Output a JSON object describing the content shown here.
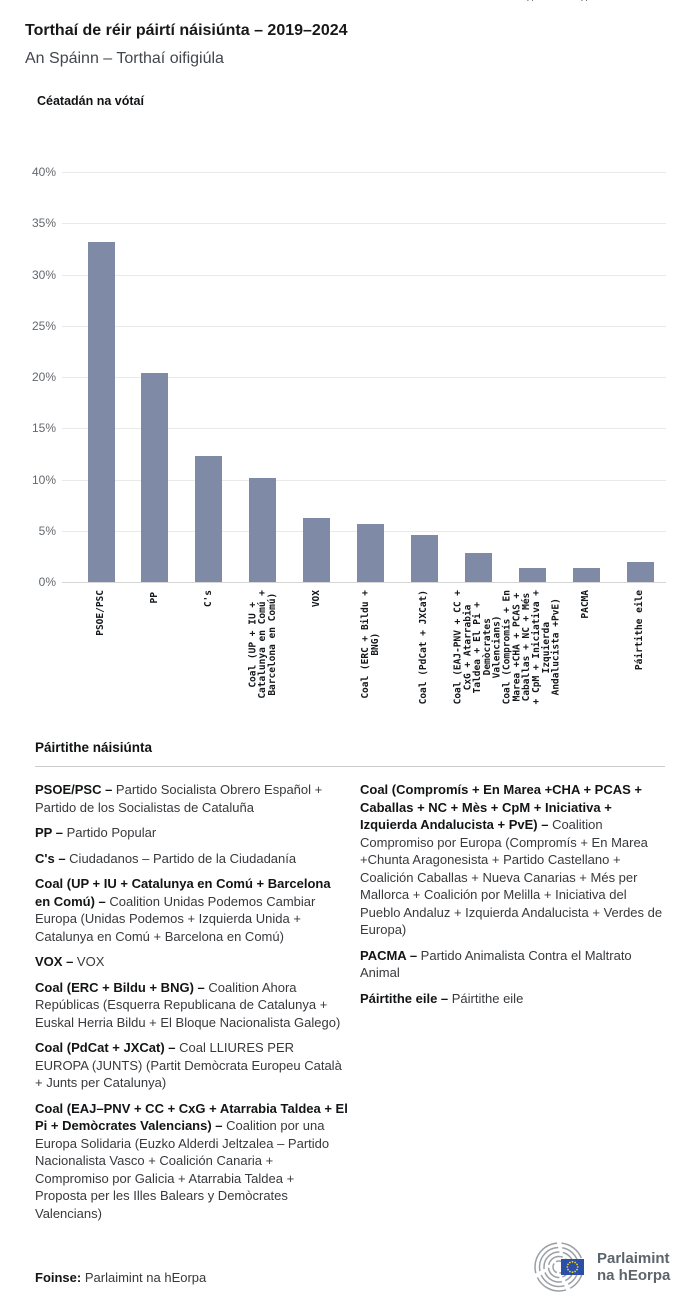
{
  "header": {
    "title": "Torthaí de réir páirtí náisiúnta – 2019–2024",
    "subtitle": "An Spáinn – Torthaí oifigiúla"
  },
  "chart_data": {
    "type": "bar",
    "title": "Céatadán na vótaí",
    "xlabel": "",
    "ylabel": "Céatadán na vótaí",
    "ylim": [
      0,
      40
    ],
    "ytick_step": 5,
    "grid": true,
    "bar_color": "#7f8aa6",
    "y_ticks": [
      "0%",
      "5%",
      "10%",
      "15%",
      "20%",
      "25%",
      "30%",
      "35%",
      "40%"
    ],
    "categories": [
      "PSOE/PSC",
      "PP",
      "C's",
      "Coal (UP + IU + Catalunya en Comú + Barcelona en Comú)",
      "VOX",
      "Coal (ERC + Bildu + BNG)",
      "Coal (PdCat + JXCat)",
      "Coal (EAJ-PNV + CC + CxG + Atarrabia Taldea + El Pi + Demòcrates Valencians)",
      "Coal (Compromís + En Marea +CHA + PCAS + Caballas + NC + Més + CpM + Iniciativa + Izquierda Andalucista +PvE)",
      "PACMA",
      "Páirtithe eile"
    ],
    "categories_display": [
      "PSOE/PSC",
      "PP",
      "C's",
      "Coal (UP + IU +\nCatalunya en Comú +\nBarcelona en Comú)",
      "VOX",
      "Coal (ERC + Bildu +\nBNG)",
      "Coal (PdCat + JXCat)",
      "Coal (EAJ-PNV + CC +\nCxG + Atarrabia\nTaldea + El Pi +\nDemòcrates\nValencians)",
      "Coal (Compromís + En\nMarea +CHA + PCAS +\nCaballas + NC + Més\n+ CpM + Iniciativa +\nIzquierda\nAndalucista +PvE)",
      "PACMA",
      "Páirtithe eile"
    ],
    "values": [
      33.18,
      20.35,
      12.3,
      10.17,
      6.28,
      5.64,
      4.59,
      2.85,
      1.33,
      1.33,
      1.98
    ],
    "value_labels": [
      "33.18",
      "20.35",
      "12.30",
      "10.17",
      "6.28",
      "5.64",
      "4.59",
      "2.85",
      "1.33",
      "1.33",
      "1.98"
    ]
  },
  "legend": {
    "title": "Páirtithe náisiúnta",
    "columns": [
      [
        {
          "name": "PSOE/PSC",
          "desc": "Partido Socialista Obrero Español + Partido de los Socialistas de Cataluña"
        },
        {
          "name": "PP",
          "desc": "Partido Popular"
        },
        {
          "name": "C's",
          "desc": "Ciudadanos – Partido de la Ciudadanía"
        },
        {
          "name": "Coal (UP + IU + Catalunya en Comú + Barcelona en Comú)",
          "desc": "Coalition Unidas Podemos Cambiar Europa (Unidas Podemos + Izquierda Unida + Catalunya en Comú + Barcelona en Comú)"
        },
        {
          "name": "VOX",
          "desc": "VOX"
        },
        {
          "name": "Coal (ERC + Bildu + BNG)",
          "desc": "Coalition Ahora Repúblicas (Esquerra Republicana de Catalunya + Euskal Herria Bildu + El Bloque Nacionalista Galego)"
        },
        {
          "name": "Coal (PdCat + JXCat)",
          "desc": "Coal LLIURES PER EUROPA (JUNTS) (Partit Demòcrata Europeu Català + Junts per Catalunya)"
        },
        {
          "name": "Coal (EAJ–PNV + CC + CxG + Atarrabia Taldea + El Pi + Demòcrates Valencians)",
          "desc": "Coalition por una Europa Solidaria (Euzko Alderdi Jeltzalea – Partido Nacionalista Vasco + Coalición Canaria + Compromiso por Galicia + Atarrabia Taldea + Proposta per les Illes Balears y Demòcrates Valencians)"
        }
      ],
      [
        {
          "name": "Coal (Compromís + En Marea +CHA + PCAS + Caballas + NC + Mès + CpM + Iniciativa + Izquierda Andalucista + PvE)",
          "desc": "Coalition Compromiso por Europa (Compromís + En Marea +Chunta Aragonesista + Partido Castellano + Coalición Caballas + Nueva Canarias + Més per Mallorca + Coalición por Melilla + Iniciativa del Pueblo Andaluz + Izquierda Andalucista + Verdes de Europa)"
        },
        {
          "name": "PACMA",
          "desc": "Partido Animalista Contra el Maltrato Animal"
        },
        {
          "name": "Páirtithe eile",
          "desc": "Páirtithe eile"
        }
      ]
    ]
  },
  "footer": {
    "source_label": "Foinse:",
    "source_value": "Parlaimint na hEorpa",
    "logo_line1": "Parlaimint",
    "logo_line2": "na hEorpa"
  },
  "colors": {
    "bar": "#7f8aa6",
    "gridline": "#e9e9e9",
    "eu_flag_blue": "#2b4ea6",
    "eu_star_yellow": "#f7d117",
    "logo_gray": "#9aa0a6"
  }
}
